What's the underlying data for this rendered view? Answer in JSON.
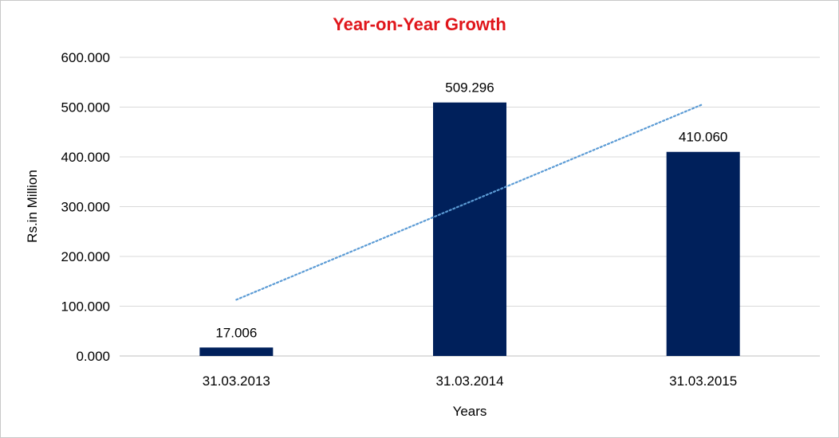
{
  "chart_data": {
    "type": "bar",
    "title": "Year-on-Year Growth",
    "xlabel": "Years",
    "ylabel": "Rs.in Million",
    "categories": [
      "31.03.2013",
      "31.03.2014",
      "31.03.2015"
    ],
    "values": [
      17.006,
      509.296,
      410.06
    ],
    "data_labels": [
      "17.006",
      "509.296",
      "410.060"
    ],
    "y_ticks": [
      "0.000",
      "100.000",
      "200.000",
      "300.000",
      "400.000",
      "500.000",
      "600.000"
    ],
    "ylim": [
      0,
      600
    ],
    "grid": true,
    "legend": "none",
    "trendline": {
      "type": "linear",
      "style": "dotted",
      "start": 113,
      "end": 506
    },
    "colors": {
      "bar": "#00205b",
      "trendline": "#5b9bd5",
      "title": "#e0161b"
    }
  }
}
